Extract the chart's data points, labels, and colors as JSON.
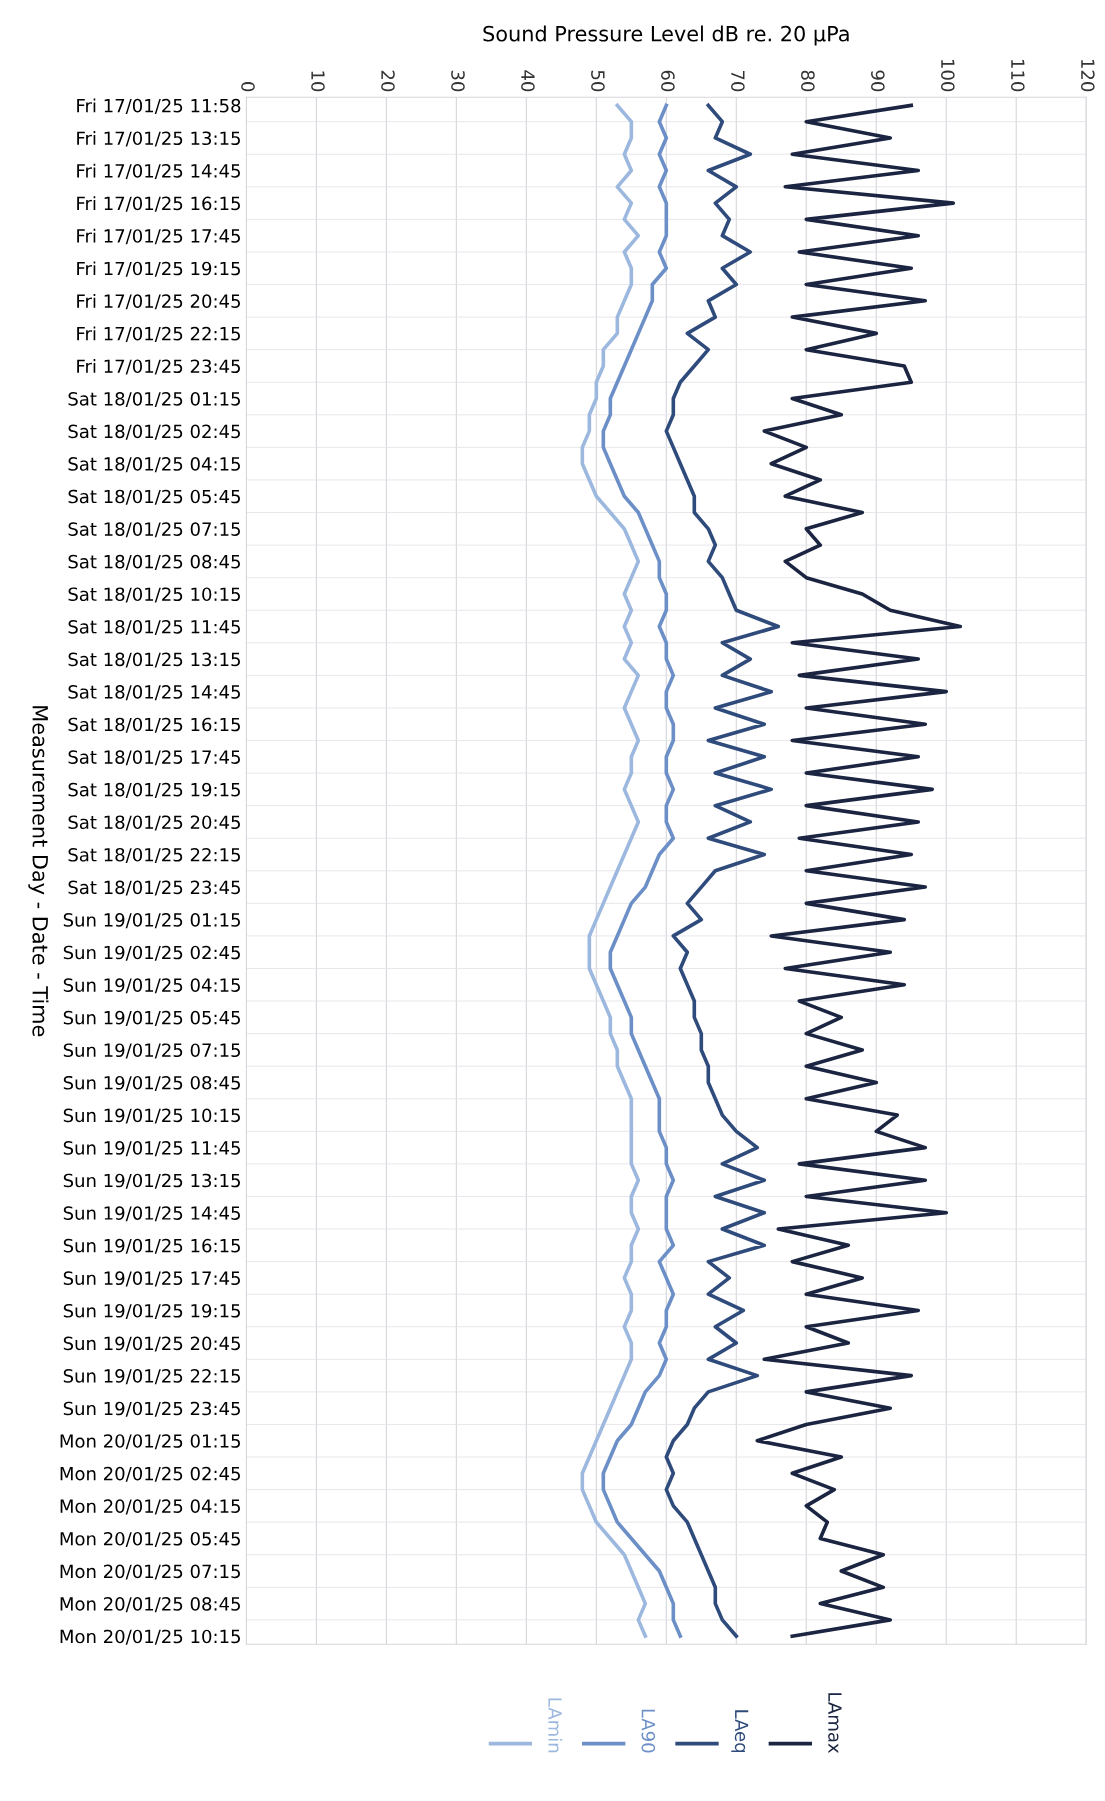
{
  "chart_data": {
    "type": "line",
    "orientation": "horizontal",
    "xlabel": "Sound Pressure Level dB re. 20 µPa",
    "ylabel": "Measurement Day - Date - Time",
    "categories": [
      "Fri 17/01/25 11:58",
      null,
      "Fri 17/01/25 13:15",
      null,
      "Fri 17/01/25 14:45",
      null,
      "Fri 17/01/25 16:15",
      null,
      "Fri 17/01/25 17:45",
      null,
      "Fri 17/01/25 19:15",
      null,
      "Fri 17/01/25 20:45",
      null,
      "Fri 17/01/25 22:15",
      null,
      "Fri 17/01/25 23:45",
      null,
      "Sat 18/01/25 01:15",
      null,
      "Sat 18/01/25 02:45",
      null,
      "Sat 18/01/25 04:15",
      null,
      "Sat 18/01/25 05:45",
      null,
      "Sat 18/01/25 07:15",
      null,
      "Sat 18/01/25 08:45",
      null,
      "Sat 18/01/25 10:15",
      null,
      "Sat 18/01/25 11:45",
      null,
      "Sat 18/01/25 13:15",
      null,
      "Sat 18/01/25 14:45",
      null,
      "Sat 18/01/25 16:15",
      null,
      "Sat 18/01/25 17:45",
      null,
      "Sat 18/01/25 19:15",
      null,
      "Sat 18/01/25 20:45",
      null,
      "Sat 18/01/25 22:15",
      null,
      "Sat 18/01/25 23:45",
      null,
      "Sun 19/01/25 01:15",
      null,
      "Sun 19/01/25 02:45",
      null,
      "Sun 19/01/25 04:15",
      null,
      "Sun 19/01/25 05:45",
      null,
      "Sun 19/01/25 07:15",
      null,
      "Sun 19/01/25 08:45",
      null,
      "Sun 19/01/25 10:15",
      null,
      "Sun 19/01/25 11:45",
      null,
      "Sun 19/01/25 13:15",
      null,
      "Sun 19/01/25 14:45",
      null,
      "Sun 19/01/25 16:15",
      null,
      "Sun 19/01/25 17:45",
      null,
      "Sun 19/01/25 19:15",
      null,
      "Sun 19/01/25 20:45",
      null,
      "Sun 19/01/25 22:15",
      null,
      "Sun 19/01/25 23:45",
      null,
      "Mon 20/01/25 01:15",
      null,
      "Mon 20/01/25 02:45",
      null,
      "Mon 20/01/25 04:15",
      null,
      "Mon 20/01/25 05:45",
      null,
      "Mon 20/01/25 07:15",
      null,
      "Mon 20/01/25 08:45",
      null,
      "Mon 20/01/25 10:15"
    ],
    "xlim": [
      0,
      120
    ],
    "xticks": [
      0,
      10,
      20,
      30,
      40,
      50,
      60,
      70,
      80,
      90,
      100,
      110,
      120
    ],
    "grid": true,
    "legend": "bottom",
    "marker": "none",
    "line_style": "solid",
    "series": [
      {
        "name": "LAmax",
        "color": "#1b2542",
        "values": [
          95,
          80,
          92,
          78,
          96,
          77,
          101,
          80,
          96,
          79,
          95,
          80,
          97,
          78,
          90,
          80,
          94,
          95,
          78,
          85,
          74,
          80,
          75,
          82,
          77,
          88,
          80,
          82,
          77,
          80,
          88,
          92,
          102,
          78,
          96,
          79,
          100,
          80,
          97,
          78,
          96,
          80,
          98,
          80,
          96,
          79,
          95,
          80,
          97,
          80,
          94,
          75,
          92,
          77,
          94,
          79,
          85,
          80,
          88,
          80,
          90,
          80,
          93,
          90,
          97,
          79,
          97,
          80,
          100,
          76,
          86,
          78,
          88,
          80,
          96,
          80,
          86,
          74,
          95,
          80,
          92,
          80,
          73,
          85,
          78,
          84,
          80,
          83,
          82,
          91,
          85,
          91,
          82,
          92,
          78
        ]
      },
      {
        "name": "LAeq",
        "color": "#2f4b7c",
        "values": [
          66,
          68,
          67,
          72,
          66,
          70,
          67,
          69,
          68,
          72,
          68,
          70,
          66,
          67,
          63,
          66,
          64,
          62,
          61,
          61,
          60,
          61,
          62,
          63,
          64,
          64,
          66,
          67,
          66,
          68,
          69,
          70,
          76,
          68,
          72,
          68,
          75,
          67,
          74,
          66,
          74,
          67,
          75,
          67,
          72,
          66,
          74,
          67,
          65,
          63,
          65,
          61,
          63,
          62,
          63,
          64,
          64,
          65,
          65,
          66,
          66,
          67,
          68,
          70,
          73,
          68,
          74,
          67,
          74,
          68,
          74,
          66,
          69,
          66,
          71,
          67,
          70,
          66,
          73,
          66,
          64,
          63,
          61,
          60,
          61,
          60,
          61,
          63,
          64,
          65,
          66,
          67,
          67,
          68,
          70
        ]
      },
      {
        "name": "LA90",
        "color": "#6b8fc6",
        "values": [
          60,
          59,
          60,
          59,
          60,
          59,
          60,
          60,
          60,
          59,
          60,
          58,
          58,
          57,
          56,
          55,
          54,
          53,
          52,
          52,
          51,
          51,
          52,
          53,
          54,
          56,
          57,
          58,
          59,
          59,
          60,
          60,
          59,
          60,
          60,
          61,
          60,
          60,
          61,
          61,
          60,
          60,
          61,
          60,
          60,
          61,
          59,
          58,
          57,
          55,
          54,
          53,
          52,
          52,
          53,
          54,
          55,
          55,
          56,
          57,
          58,
          59,
          59,
          59,
          60,
          60,
          61,
          60,
          60,
          60,
          61,
          59,
          60,
          61,
          60,
          60,
          59,
          60,
          59,
          57,
          56,
          55,
          53,
          52,
          51,
          51,
          52,
          53,
          55,
          57,
          59,
          60,
          61,
          61,
          62
        ]
      },
      {
        "name": "LAmin",
        "color": "#9cb8de",
        "values": [
          53,
          55,
          55,
          54,
          55,
          53,
          55,
          54,
          56,
          54,
          55,
          55,
          54,
          53,
          53,
          51,
          51,
          50,
          50,
          49,
          49,
          48,
          48,
          49,
          50,
          52,
          54,
          55,
          56,
          55,
          54,
          55,
          54,
          55,
          54,
          56,
          55,
          54,
          55,
          56,
          55,
          55,
          54,
          55,
          56,
          55,
          54,
          53,
          52,
          51,
          50,
          49,
          49,
          49,
          50,
          51,
          52,
          52,
          53,
          53,
          54,
          55,
          55,
          55,
          55,
          55,
          56,
          55,
          55,
          56,
          55,
          55,
          54,
          55,
          55,
          54,
          55,
          55,
          54,
          53,
          52,
          51,
          50,
          49,
          48,
          48,
          49,
          50,
          52,
          54,
          55,
          56,
          57,
          56,
          57
        ]
      }
    ]
  }
}
